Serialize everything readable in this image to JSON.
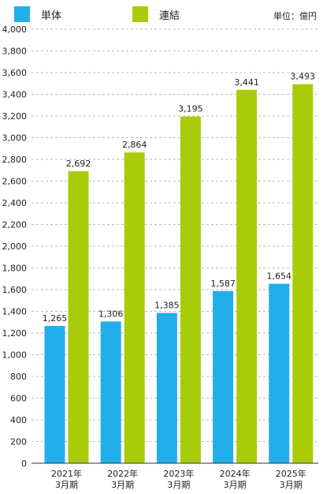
{
  "legend": {
    "series_a_label": "単体",
    "series_b_label": "連結",
    "unit": "単位：億円"
  },
  "colors": {
    "series_a": "#22aee8",
    "series_b": "#a8cc0a",
    "grid": "#bbbbbb",
    "axis": "#333333"
  },
  "chart_data": {
    "type": "bar",
    "categories": [
      [
        "2021年",
        "3月期"
      ],
      [
        "2022年",
        "3月期"
      ],
      [
        "2023年",
        "3月期"
      ],
      [
        "2024年",
        "3月期"
      ],
      [
        "2025年",
        "3月期"
      ]
    ],
    "series": [
      {
        "name": "単体",
        "values": [
          1265,
          1306,
          1385,
          1587,
          1654
        ]
      },
      {
        "name": "連結",
        "values": [
          2692,
          2864,
          3195,
          3441,
          3493
        ]
      }
    ],
    "title": "",
    "xlabel": "",
    "ylabel": "",
    "unit": "単位：億円",
    "ylim": [
      0,
      4000
    ],
    "ytick_step": 200,
    "grid": true,
    "legend": "top-left"
  }
}
